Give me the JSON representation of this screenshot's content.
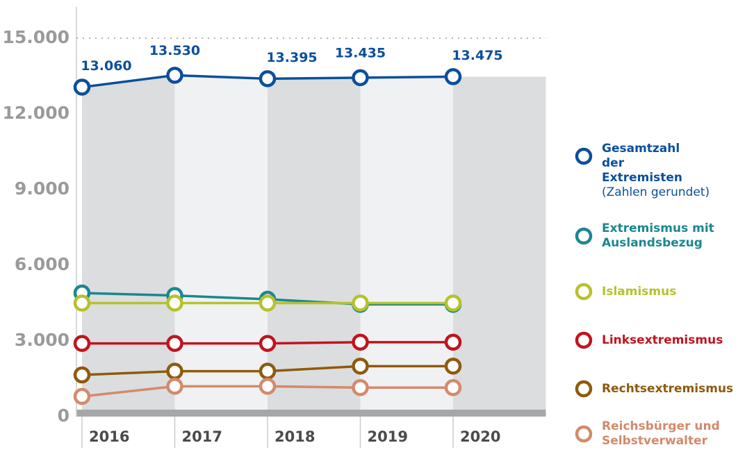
{
  "chart_data": {
    "type": "line",
    "categories": [
      "2016",
      "2017",
      "2018",
      "2019",
      "2020"
    ],
    "series": [
      {
        "name": "Gesamtzahl der Extremisten",
        "color": "#0b4f9c",
        "values": [
          13060,
          13530,
          13395,
          13435,
          13475
        ],
        "value_labels": [
          "13.060",
          "13.530",
          "13.395",
          "13.435",
          "13.475"
        ]
      },
      {
        "name": "Extremismus mit Auslandsbezug",
        "color": "#1b8790",
        "values": [
          4900,
          4800,
          4650,
          4450,
          4450
        ]
      },
      {
        "name": "Islamismus",
        "color": "#b6c22a",
        "values": [
          4500,
          4500,
          4500,
          4500,
          4500
        ]
      },
      {
        "name": "Linksextremismus",
        "color": "#c0141f",
        "values": [
          2900,
          2900,
          2900,
          2950,
          2950
        ]
      },
      {
        "name": "Rechtsextremismus",
        "color": "#8f5a0c",
        "values": [
          1650,
          1800,
          1800,
          2000,
          2000
        ]
      },
      {
        "name": "Reichsbürger und Selbstverwalter",
        "color": "#d38a6b",
        "values": [
          800,
          1200,
          1200,
          1150,
          1150
        ]
      }
    ],
    "legend_note": "(Zahlen gerundet)",
    "ylim": [
      0,
      15000
    ],
    "yticks": [
      0,
      {
        "value": 3000,
        "label": "3.000"
      },
      {
        "value": 6000,
        "label": "6.000"
      },
      {
        "value": 9000,
        "label": "9.000"
      },
      {
        "value": 12000,
        "label": "12.000"
      },
      {
        "value": 15000,
        "label": "15.000"
      }
    ]
  }
}
